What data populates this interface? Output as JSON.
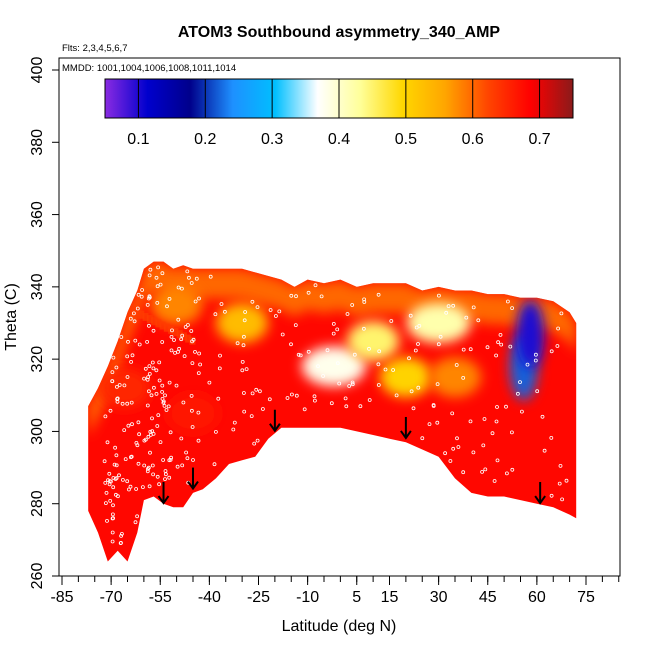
{
  "chart_data": {
    "type": "heatmap",
    "title": "ATOM3 Southbound asymmetry_340_AMP",
    "annotations": [
      "Flts: 2,3,4,5,6,7",
      "MMDD: 1001,1004,1006,1008,1011,1014"
    ],
    "xlabel": "Latitude (deg N)",
    "ylabel": "Theta (C)",
    "xlim": [
      -85,
      85
    ],
    "ylim": [
      260,
      400
    ],
    "x_ticks": [
      -85,
      -70,
      -55,
      -40,
      -25,
      -10,
      5,
      15,
      30,
      45,
      60,
      75
    ],
    "y_ticks": [
      260,
      280,
      300,
      320,
      340,
      360,
      380,
      400
    ],
    "colorbar": {
      "range": [
        0.05,
        0.75
      ],
      "ticks": [
        0.1,
        0.2,
        0.3,
        0.4,
        0.5,
        0.6,
        0.7
      ],
      "colors": [
        "#8a2be2",
        "#0000cd",
        "#00008b",
        "#1e90ff",
        "#00bfff",
        "#ffffff",
        "#ffff99",
        "#ffd700",
        "#ffa500",
        "#ff4500",
        "#ff0000",
        "#8b1a1a"
      ]
    },
    "field_envelope": {
      "latitude": [
        -77,
        -74,
        -71,
        -68,
        -65,
        -62,
        -60,
        -57,
        -54,
        -51,
        -48,
        -45,
        -42,
        -38,
        -34,
        -30,
        -26,
        -22,
        -18,
        -14,
        -10,
        -5,
        0,
        5,
        10,
        15,
        20,
        25,
        30,
        35,
        40,
        45,
        50,
        55,
        60,
        65,
        70,
        72
      ],
      "theta_top": [
        307,
        312,
        318,
        325,
        333,
        339,
        345,
        347,
        347,
        345,
        346,
        345,
        345,
        345,
        345,
        345,
        344,
        343,
        342,
        340,
        342,
        341,
        342,
        340,
        341,
        341,
        341,
        339,
        340,
        339,
        339,
        338,
        338,
        337,
        337,
        336,
        333,
        330
      ],
      "theta_bottom": [
        278,
        272,
        264,
        267,
        264,
        272,
        281,
        282,
        280,
        279,
        279,
        283,
        284,
        287,
        291,
        292,
        293,
        298,
        301,
        301,
        301,
        301,
        301,
        300,
        299,
        298,
        297,
        295,
        293,
        287,
        283,
        282,
        282,
        281,
        280,
        279,
        277,
        276
      ]
    },
    "blobs": [
      {
        "lat": -66,
        "theta": 312,
        "value": 0.65
      },
      {
        "lat": -45,
        "theta": 305,
        "value": 0.67
      },
      {
        "lat": -30,
        "theta": 330,
        "value": 0.53
      },
      {
        "lat": -50,
        "theta": 335,
        "value": 0.58
      },
      {
        "lat": -2,
        "theta": 318,
        "value": 0.38
      },
      {
        "lat": 10,
        "theta": 325,
        "value": 0.45
      },
      {
        "lat": 20,
        "theta": 315,
        "value": 0.5
      },
      {
        "lat": 35,
        "theta": 315,
        "value": 0.58
      },
      {
        "lat": 30,
        "theta": 330,
        "value": 0.42
      },
      {
        "lat": 56,
        "theta": 318,
        "value": 0.22
      },
      {
        "lat": 58,
        "theta": 327,
        "value": 0.1
      }
    ],
    "arrows": [
      {
        "lat": -54,
        "theta": 286
      },
      {
        "lat": -45,
        "theta": 290
      },
      {
        "lat": -20,
        "theta": 306
      },
      {
        "lat": 20,
        "theta": 304
      },
      {
        "lat": 61,
        "theta": 286
      }
    ]
  }
}
